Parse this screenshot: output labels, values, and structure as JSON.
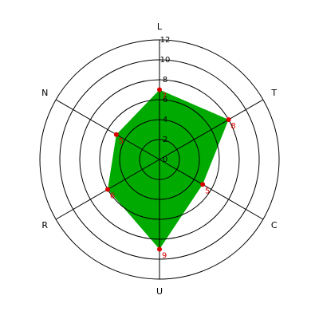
{
  "chart_data": {
    "type": "radar",
    "categories": [
      "L",
      "T",
      "C",
      "U",
      "R",
      "N"
    ],
    "values": [
      7,
      8,
      5,
      9,
      6,
      5
    ],
    "color": "#00aa00",
    "marker_color": "#dd0000",
    "rlim": [
      0,
      12
    ],
    "rticks": [
      0,
      2,
      4,
      6,
      8,
      10,
      12
    ],
    "grid": true
  }
}
